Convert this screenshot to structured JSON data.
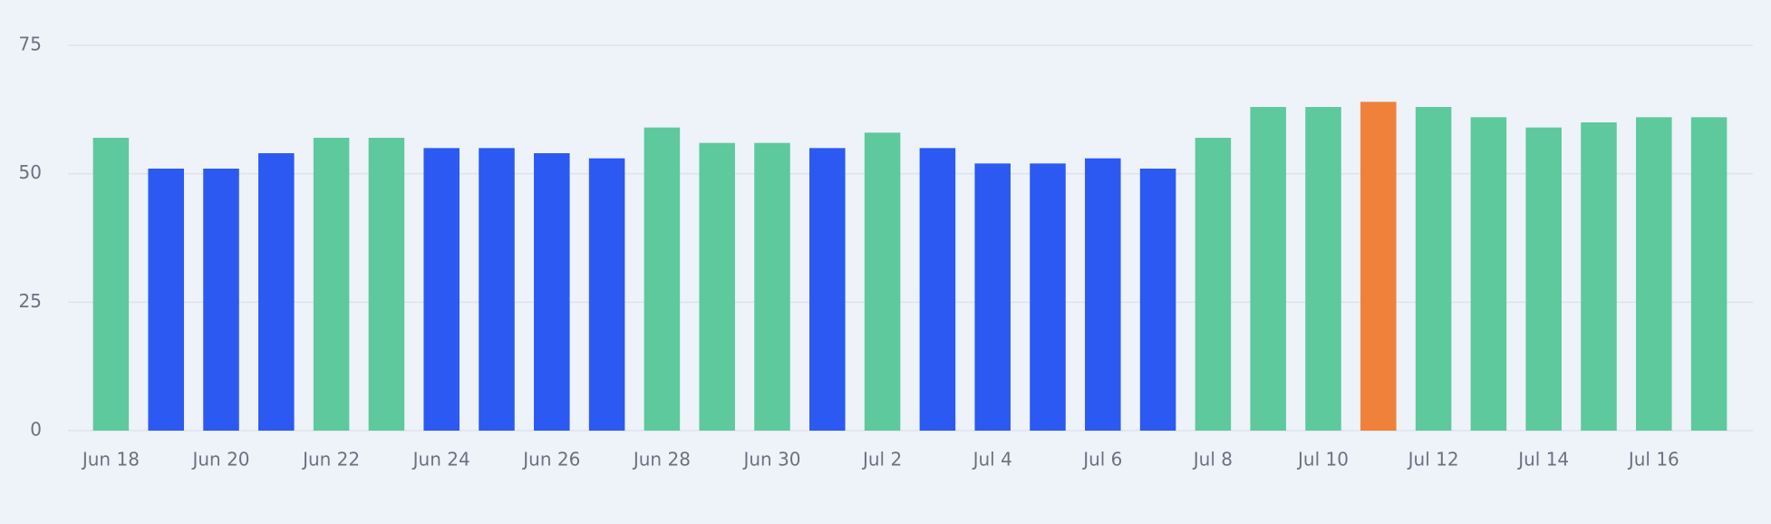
{
  "chart_data": {
    "type": "bar",
    "categories": [
      "Jun 18",
      null,
      "Jun 20",
      null,
      "Jun 22",
      null,
      "Jun 24",
      null,
      "Jun 26",
      null,
      "Jun 28",
      null,
      "Jun 30",
      null,
      "Jul 2",
      null,
      "Jul 4",
      null,
      "Jul 6",
      null,
      "Jul 8",
      null,
      "Jul 10",
      null,
      "Jul 12",
      null,
      "Jul 14",
      null,
      "Jul 16",
      null
    ],
    "values": [
      57,
      51,
      51,
      54,
      57,
      57,
      55,
      55,
      54,
      53,
      59,
      56,
      56,
      55,
      58,
      55,
      52,
      52,
      53,
      51,
      57,
      63,
      63,
      64,
      63,
      61,
      59,
      60,
      61,
      61
    ],
    "colors": [
      "#5ec99c",
      "#2b59f2",
      "#2b59f2",
      "#2b59f2",
      "#5ec99c",
      "#5ec99c",
      "#2b59f2",
      "#2b59f2",
      "#2b59f2",
      "#2b59f2",
      "#5ec99c",
      "#5ec99c",
      "#5ec99c",
      "#2b59f2",
      "#5ec99c",
      "#2b59f2",
      "#2b59f2",
      "#2b59f2",
      "#2b59f2",
      "#2b59f2",
      "#5ec99c",
      "#5ec99c",
      "#5ec99c",
      "#ef813a",
      "#5ec99c",
      "#5ec99c",
      "#5ec99c",
      "#5ec99c",
      "#5ec99c",
      "#5ec99c"
    ],
    "ylim": [
      0,
      75
    ],
    "yticks": [
      0,
      25,
      50,
      75
    ],
    "grid": true
  }
}
